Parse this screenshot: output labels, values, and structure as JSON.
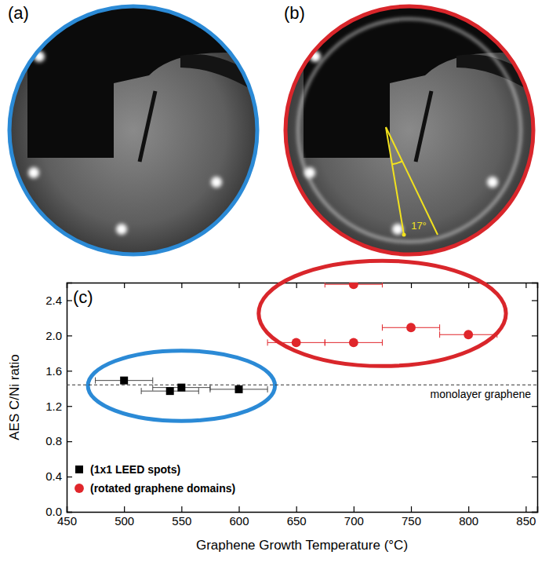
{
  "panels": [
    {
      "label": "(a)"
    },
    {
      "label": "(b)",
      "annotation": "17°"
    }
  ],
  "chart_data": {
    "type": "scatter",
    "label": "(c)",
    "xlabel": "Graphene Growth Temperature (°C)",
    "ylabel": "AES C/Ni ratio",
    "xlim": [
      450,
      860
    ],
    "ylim": [
      0,
      2.6
    ],
    "xticks": [
      450,
      500,
      550,
      600,
      650,
      700,
      750,
      800,
      850
    ],
    "yticks": [
      {
        "value": 0,
        "label": "0.0"
      },
      0.4,
      0.8,
      1.2,
      1.6,
      {
        "value": 2,
        "label": "2.0"
      },
      2.4
    ],
    "legend": "lower left",
    "series": [
      {
        "name": "(1x1 LEED spots)",
        "color": "#000000",
        "marker": "square",
        "x": [
          500,
          540,
          550,
          600
        ],
        "values": [
          1.49,
          1.37,
          1.41,
          1.39
        ],
        "x_error": [
          25,
          25,
          25,
          25
        ]
      },
      {
        "name": "(rotated graphene domains)",
        "color": "#e0262b",
        "marker": "circle",
        "x": [
          650,
          700,
          700,
          750,
          800
        ],
        "values": [
          1.92,
          2.58,
          1.92,
          2.09,
          2.01
        ],
        "x_error": [
          25,
          25,
          25,
          25,
          25
        ]
      }
    ],
    "annotations": [
      {
        "text": "monolayer graphene",
        "y": 1.44,
        "line_style": "dashed"
      }
    ]
  }
}
